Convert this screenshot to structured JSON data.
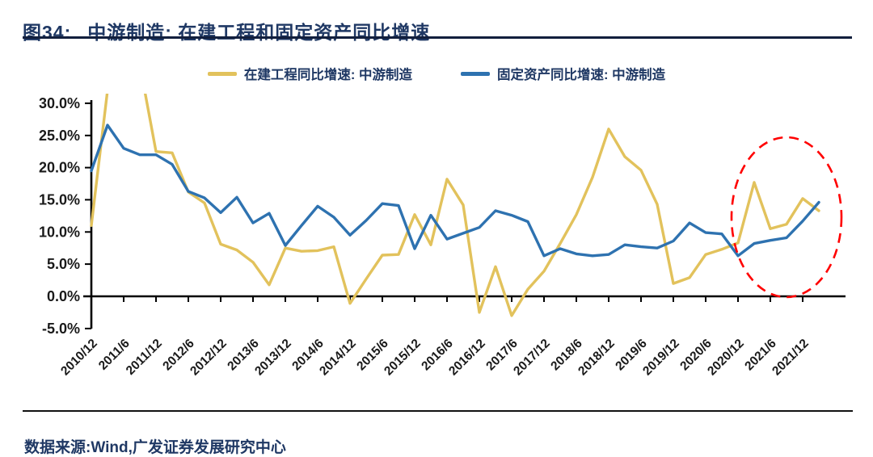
{
  "title": {
    "figure_label": "图34:",
    "text": "中游制造: 在建工程和固定资产同比增速"
  },
  "legend": [
    {
      "label": "在建工程同比增速: 中游制造",
      "color": "#E2C25C"
    },
    {
      "label": "固定资产同比增速: 中游制造",
      "color": "#2E72B0"
    }
  ],
  "footer": {
    "source": "数据来源:Wind,广发证券发展研究中心"
  },
  "chart_data": {
    "type": "line",
    "x": [
      "2010/12",
      "2011/3",
      "2011/6",
      "2011/9",
      "2011/12",
      "2012/3",
      "2012/6",
      "2012/9",
      "2012/12",
      "2013/3",
      "2013/6",
      "2013/9",
      "2013/12",
      "2014/3",
      "2014/6",
      "2014/9",
      "2014/12",
      "2015/3",
      "2015/6",
      "2015/9",
      "2015/12",
      "2016/3",
      "2016/6",
      "2016/9",
      "2016/12",
      "2017/3",
      "2017/6",
      "2017/9",
      "2017/12",
      "2018/3",
      "2018/6",
      "2018/9",
      "2018/12",
      "2019/3",
      "2019/6",
      "2019/9",
      "2019/12",
      "2020/3",
      "2020/6",
      "2020/9",
      "2020/12",
      "2021/3",
      "2021/6",
      "2021/9",
      "2021/12",
      "2022/3"
    ],
    "series": [
      {
        "name": "在建工程同比增速: 中游制造",
        "color": "#E2C25C",
        "values": [
          11.0,
          32.0,
          45.0,
          36.0,
          22.5,
          22.3,
          16.2,
          14.5,
          8.1,
          7.2,
          5.3,
          1.8,
          7.5,
          7.0,
          7.1,
          7.7,
          -1.1,
          2.7,
          6.4,
          6.5,
          12.7,
          8.0,
          18.2,
          14.2,
          -2.5,
          4.6,
          -3.0,
          1.1,
          3.9,
          8.2,
          12.7,
          18.5,
          26.0,
          21.7,
          19.6,
          14.3,
          2.0,
          2.9,
          6.5,
          7.3,
          8.3,
          17.7,
          10.5,
          11.2,
          15.2,
          13.3
        ]
      },
      {
        "name": "固定资产同比增速: 中游制造",
        "color": "#2E72B0",
        "values": [
          19.5,
          26.6,
          23.0,
          22.0,
          22.0,
          20.5,
          16.3,
          15.3,
          13.0,
          15.4,
          11.4,
          12.9,
          7.9,
          11.0,
          14.0,
          12.3,
          9.5,
          11.8,
          14.4,
          14.1,
          7.4,
          12.6,
          8.9,
          9.8,
          10.7,
          13.3,
          12.6,
          11.6,
          6.3,
          7.4,
          6.6,
          6.3,
          6.5,
          8.0,
          7.7,
          7.5,
          8.6,
          11.4,
          9.9,
          9.7,
          6.3,
          8.2,
          8.7,
          9.1,
          11.7,
          14.6
        ]
      }
    ],
    "x_axis": {
      "tick_labels": [
        "2010/12",
        "2011/6",
        "2011/12",
        "2012/6",
        "2012/12",
        "2013/6",
        "2013/12",
        "2014/6",
        "2014/12",
        "2015/6",
        "2015/12",
        "2016/6",
        "2016/12",
        "2017/6",
        "2017/12",
        "2018/6",
        "2018/12",
        "2019/6",
        "2019/12",
        "2020/6",
        "2020/12",
        "2021/6",
        "2021/12"
      ]
    },
    "y_axis": {
      "tick_values": [
        30,
        25,
        20,
        15,
        10,
        5,
        0,
        -5
      ],
      "tick_labels": [
        "30.0%",
        "25.0%",
        "20.0%",
        "15.0%",
        "10.0%",
        "5.0%",
        "0.0%",
        "-5.0%"
      ]
    },
    "ylim": [
      -5,
      30
    ],
    "grid": false,
    "legend_position": "top",
    "values_above_ymax_clipped": true,
    "annotation": {
      "shape": "ellipse",
      "style": "dashed",
      "color": "#FF0000",
      "highlights": "2020/12 - 2021/12 区间"
    }
  }
}
